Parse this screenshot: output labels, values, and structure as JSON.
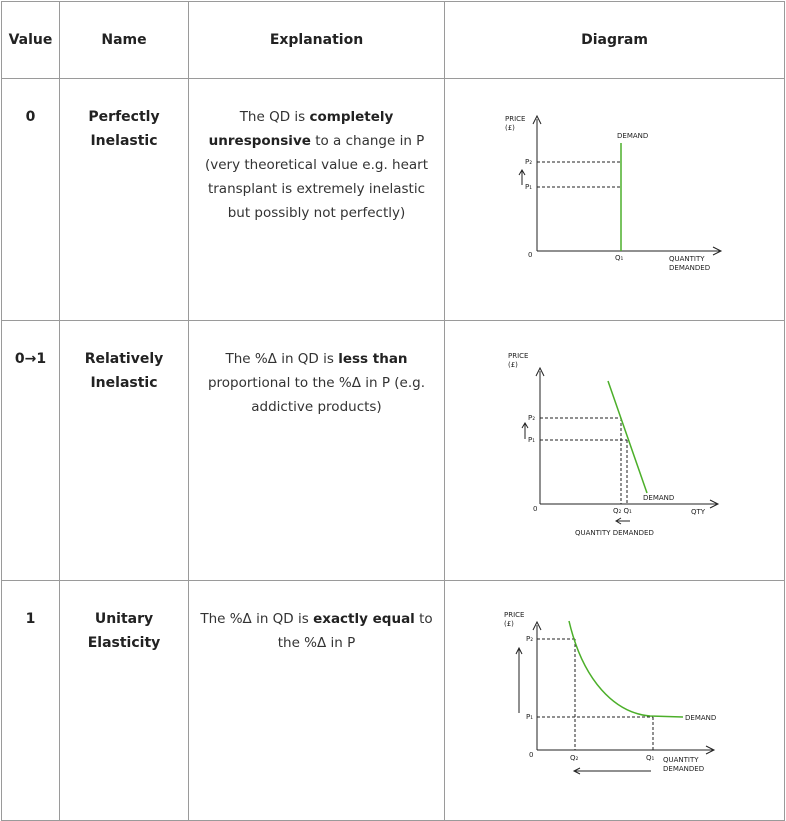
{
  "headers": {
    "value": "Value",
    "name": "Name",
    "explanation": "Explanation",
    "diagram": "Diagram"
  },
  "rows": [
    {
      "value": "0",
      "name_line1": "Perfectly",
      "name_line2": "Inelastic",
      "explanation": {
        "t1": "The QD is ",
        "b1": "completely unresponsive",
        "t2": " to a change in P (very theoretical value e.g. heart transplant is extremely inelastic but possibly not perfectly)"
      },
      "diagram": {
        "y_label_1": "PRICE",
        "y_label_2": "(£)",
        "p_top": "P₂",
        "p_bottom": "P₁",
        "origin": "0",
        "q": "Q₁",
        "curve_label": "DEMAND",
        "x_label_1": "QUANTITY",
        "x_label_2": "DEMANDED",
        "curve_color": "#4caf2a"
      }
    },
    {
      "value": "0→1",
      "name_line1": "Relatively",
      "name_line2": "Inelastic",
      "explanation": {
        "t1": "The %Δ in QD is ",
        "b1": "less than",
        "t2": " proportional to the %Δ in P (e.g. addictive products)"
      },
      "diagram": {
        "y_label_1": "PRICE",
        "y_label_2": "(£)",
        "p_top": "P₂",
        "p_bottom": "P₁",
        "origin": "0",
        "q": "Q₂ Q₁",
        "curve_label": "DEMAND",
        "x_axis_end": "QTY",
        "x_label": "QUANTITY DEMANDED",
        "curve_color": "#4caf2a"
      }
    },
    {
      "value": "1",
      "name_line1": "Unitary",
      "name_line2": "Elasticity",
      "explanation": {
        "t1": "The %Δ in QD is ",
        "b1": "exactly equal",
        "t2": " to the %Δ in P"
      },
      "diagram": {
        "y_label_1": "PRICE",
        "y_label_2": "(£)",
        "p_top": "P₂",
        "p_bottom": "P₁",
        "origin": "0",
        "q_left": "Q₂",
        "q_right": "Q₁",
        "curve_label": "DEMAND",
        "x_label_1": "QUANTITY",
        "x_label_2": "DEMANDED",
        "curve_color": "#4caf2a"
      }
    }
  ]
}
